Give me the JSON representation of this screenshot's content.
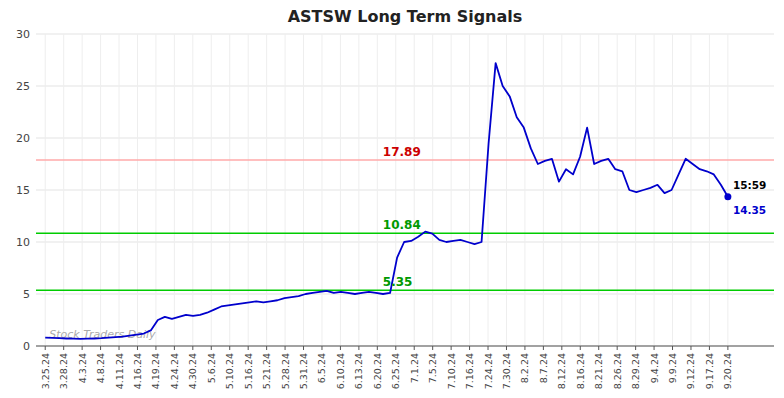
{
  "chart_data": {
    "type": "line",
    "title": "ASTSW Long Term Signals",
    "color": "#0000cc",
    "values": [
      0.8,
      0.78,
      0.75,
      0.72,
      0.7,
      0.68,
      0.7,
      0.72,
      0.75,
      0.8,
      0.85,
      0.9,
      1.0,
      1.1,
      1.2,
      1.5,
      2.5,
      2.8,
      2.6,
      2.8,
      3.0,
      2.9,
      3.0,
      3.2,
      3.5,
      3.8,
      3.9,
      4.0,
      4.1,
      4.2,
      4.3,
      4.2,
      4.3,
      4.4,
      4.6,
      4.7,
      4.8,
      5.0,
      5.1,
      5.2,
      5.3,
      5.1,
      5.2,
      5.1,
      5.0,
      5.1,
      5.2,
      5.1,
      5.0,
      5.1,
      8.5,
      10.0,
      10.1,
      10.5,
      11.0,
      10.8,
      10.2,
      10.0,
      10.1,
      10.2,
      10.0,
      9.8,
      10.0,
      19.5,
      27.2,
      25.0,
      24.0,
      22.0,
      21.0,
      19.0,
      17.5,
      17.8,
      18.0,
      15.8,
      17.0,
      16.5,
      18.2,
      21.0,
      17.5,
      17.8,
      18.0,
      17.0,
      16.8,
      15.0,
      14.8,
      15.0,
      15.2,
      15.5,
      14.7,
      15.0,
      16.5,
      18.0,
      17.5,
      17.0,
      16.8,
      16.5,
      15.5,
      14.35
    ],
    "xlim": [
      -0.5,
      39.5
    ],
    "xticks": [
      {
        "value": 0,
        "label": "3.25.24"
      },
      {
        "value": 1,
        "label": "3.28.24"
      },
      {
        "value": 2,
        "label": "4.3.24"
      },
      {
        "value": 3,
        "label": "4.8.24"
      },
      {
        "value": 4,
        "label": "4.11.24"
      },
      {
        "value": 5,
        "label": "4.16.24"
      },
      {
        "value": 6,
        "label": "4.19.24"
      },
      {
        "value": 7,
        "label": "4.24.24"
      },
      {
        "value": 8,
        "label": "4.30.24"
      },
      {
        "value": 9,
        "label": "5.6.24"
      },
      {
        "value": 10,
        "label": "5.10.24"
      },
      {
        "value": 11,
        "label": "5.16.24"
      },
      {
        "value": 12,
        "label": "5.21.24"
      },
      {
        "value": 13,
        "label": "5.28.24"
      },
      {
        "value": 14,
        "label": "5.31.24"
      },
      {
        "value": 15,
        "label": "6.5.24"
      },
      {
        "value": 16,
        "label": "6.10.24"
      },
      {
        "value": 17,
        "label": "6.13.24"
      },
      {
        "value": 18,
        "label": "6.20.24"
      },
      {
        "value": 19,
        "label": "6.25.24"
      },
      {
        "value": 20,
        "label": "7.1.24"
      },
      {
        "value": 21,
        "label": "7.5.24"
      },
      {
        "value": 22,
        "label": "7.10.24"
      },
      {
        "value": 23,
        "label": "7.16.24"
      },
      {
        "value": 24,
        "label": "7.24.24"
      },
      {
        "value": 25,
        "label": "7.30.24"
      },
      {
        "value": 26,
        "label": "8.2.24"
      },
      {
        "value": 27,
        "label": "8.7.24"
      },
      {
        "value": 28,
        "label": "8.12.24"
      },
      {
        "value": 29,
        "label": "8.16.24"
      },
      {
        "value": 30,
        "label": "8.21.24"
      },
      {
        "value": 31,
        "label": "8.26.24"
      },
      {
        "value": 32,
        "label": "8.29.24"
      },
      {
        "value": 33,
        "label": "9.4.24"
      },
      {
        "value": 34,
        "label": "9.9.24"
      },
      {
        "value": 35,
        "label": "9.12.24"
      },
      {
        "value": 36,
        "label": "9.17.24"
      },
      {
        "value": 37,
        "label": "9.20.24"
      }
    ],
    "ylim": [
      0,
      30
    ],
    "yticks": [
      0,
      5,
      10,
      15,
      20,
      25,
      30
    ],
    "grid": true,
    "hlines": [
      {
        "value": 17.89,
        "label": "17.89",
        "color": "#ffaaaa",
        "label_color": "#cc0000"
      },
      {
        "value": 10.84,
        "label": "10.84",
        "color": "#00cc00",
        "label_color": "#009900"
      },
      {
        "value": 5.35,
        "label": "5.35",
        "color": "#00cc00",
        "label_color": "#009900"
      }
    ],
    "annotations": [
      {
        "text": "15:59",
        "color": "#000000"
      },
      {
        "text": "14.35",
        "color": "#0000cc"
      }
    ],
    "watermark": {
      "text": "Stock Traders Daily",
      "color": "#aaaaaa"
    }
  }
}
